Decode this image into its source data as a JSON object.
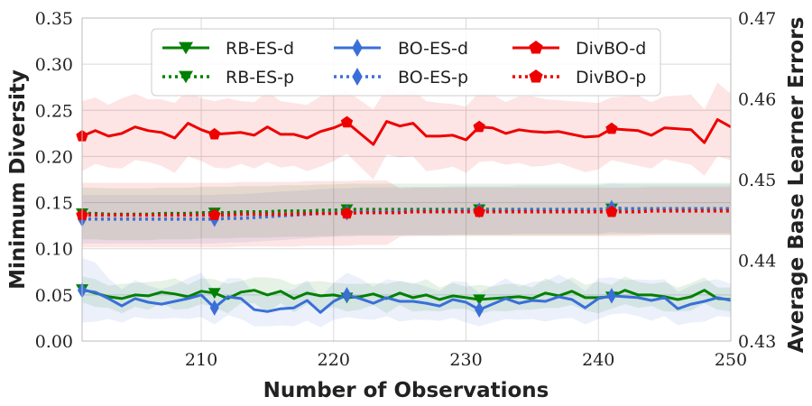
{
  "chart_data": {
    "type": "line",
    "title": "",
    "xlabel": "Number of Observations",
    "ylabel_left": "Minimum Diversity",
    "ylabel_right": "Average Base Learner Errors",
    "xlim": [
      201,
      250
    ],
    "ylim_left": [
      0.0,
      0.35
    ],
    "ylim_right": [
      0.43,
      0.47
    ],
    "x_ticks": [
      210,
      220,
      230,
      240,
      250
    ],
    "y_ticks_left": [
      "0.00",
      "0.05",
      "0.10",
      "0.15",
      "0.20",
      "0.25",
      "0.30",
      "0.35"
    ],
    "y_ticks_right": [
      "0.43",
      "0.44",
      "0.45",
      "0.46",
      "0.47"
    ],
    "grid": true,
    "legend_position": "top-center",
    "x": [
      201,
      202,
      203,
      204,
      205,
      206,
      207,
      208,
      209,
      210,
      211,
      212,
      213,
      214,
      215,
      216,
      217,
      218,
      219,
      220,
      221,
      222,
      223,
      224,
      225,
      226,
      227,
      228,
      229,
      230,
      231,
      232,
      233,
      234,
      235,
      236,
      237,
      238,
      239,
      240,
      241,
      242,
      243,
      244,
      245,
      246,
      247,
      248,
      249,
      250
    ],
    "marker_x": [
      201,
      211,
      221,
      231,
      241
    ],
    "series": [
      {
        "name": "RB-ES-d",
        "color": "#008000",
        "style": "solid",
        "marker": "triangle-down",
        "axis": "left",
        "values": [
          0.056,
          0.052,
          0.048,
          0.046,
          0.05,
          0.049,
          0.053,
          0.051,
          0.048,
          0.054,
          0.052,
          0.046,
          0.053,
          0.055,
          0.05,
          0.054,
          0.046,
          0.052,
          0.049,
          0.05,
          0.047,
          0.048,
          0.051,
          0.046,
          0.052,
          0.047,
          0.05,
          0.045,
          0.049,
          0.047,
          0.045,
          0.046,
          0.047,
          0.048,
          0.046,
          0.052,
          0.049,
          0.054,
          0.047,
          0.047,
          0.048,
          0.055,
          0.05,
          0.05,
          0.048,
          0.045,
          0.048,
          0.055,
          0.046,
          0.045
        ],
        "band": [
          0.014,
          0.015,
          0.012,
          0.016,
          0.013,
          0.015,
          0.012,
          0.017,
          0.013,
          0.014,
          0.015,
          0.016,
          0.012,
          0.014,
          0.019,
          0.013,
          0.015,
          0.012,
          0.016,
          0.013,
          0.015,
          0.014,
          0.012,
          0.016,
          0.013,
          0.015,
          0.017,
          0.013,
          0.014,
          0.012,
          0.016,
          0.013,
          0.015,
          0.014,
          0.012,
          0.016,
          0.013,
          0.015,
          0.014,
          0.017,
          0.013,
          0.015,
          0.014,
          0.012,
          0.016,
          0.013,
          0.015,
          0.014,
          0.012,
          0.013
        ]
      },
      {
        "name": "BO-ES-d",
        "color": "#3a6fd8",
        "style": "solid",
        "marker": "diamond",
        "axis": "left",
        "values": [
          0.055,
          0.053,
          0.046,
          0.038,
          0.046,
          0.042,
          0.04,
          0.043,
          0.046,
          0.05,
          0.036,
          0.048,
          0.046,
          0.034,
          0.032,
          0.035,
          0.036,
          0.044,
          0.031,
          0.043,
          0.05,
          0.046,
          0.041,
          0.047,
          0.043,
          0.043,
          0.041,
          0.038,
          0.045,
          0.042,
          0.034,
          0.04,
          0.046,
          0.041,
          0.044,
          0.043,
          0.048,
          0.045,
          0.036,
          0.046,
          0.049,
          0.048,
          0.047,
          0.044,
          0.047,
          0.035,
          0.04,
          0.043,
          0.047,
          0.044
        ],
        "band": [
          0.035,
          0.032,
          0.022,
          0.018,
          0.02,
          0.018,
          0.016,
          0.018,
          0.022,
          0.024,
          0.018,
          0.02,
          0.022,
          0.018,
          0.016,
          0.018,
          0.02,
          0.022,
          0.016,
          0.02,
          0.024,
          0.022,
          0.018,
          0.02,
          0.022,
          0.02,
          0.018,
          0.016,
          0.02,
          0.022,
          0.018,
          0.02,
          0.022,
          0.018,
          0.02,
          0.022,
          0.024,
          0.02,
          0.018,
          0.022,
          0.02,
          0.018,
          0.02,
          0.022,
          0.02,
          0.018,
          0.02,
          0.022,
          0.02,
          0.018
        ]
      },
      {
        "name": "DivBO-d",
        "color": "#ee0000",
        "style": "solid",
        "marker": "pentagon",
        "axis": "left",
        "values": [
          0.222,
          0.228,
          0.222,
          0.225,
          0.232,
          0.228,
          0.226,
          0.22,
          0.236,
          0.229,
          0.224,
          0.225,
          0.226,
          0.223,
          0.232,
          0.224,
          0.224,
          0.22,
          0.227,
          0.231,
          0.237,
          0.225,
          0.213,
          0.238,
          0.233,
          0.236,
          0.222,
          0.222,
          0.223,
          0.218,
          0.232,
          0.231,
          0.225,
          0.229,
          0.227,
          0.226,
          0.227,
          0.224,
          0.221,
          0.222,
          0.23,
          0.229,
          0.228,
          0.223,
          0.231,
          0.23,
          0.229,
          0.215,
          0.24,
          0.232
        ],
        "band": [
          0.038,
          0.036,
          0.034,
          0.038,
          0.036,
          0.034,
          0.036,
          0.038,
          0.036,
          0.034,
          0.036,
          0.038,
          0.034,
          0.036,
          0.038,
          0.036,
          0.034,
          0.036,
          0.038,
          0.036,
          0.034,
          0.036,
          0.038,
          0.036,
          0.034,
          0.036,
          0.038,
          0.036,
          0.034,
          0.036,
          0.038,
          0.036,
          0.034,
          0.036,
          0.038,
          0.036,
          0.034,
          0.036,
          0.038,
          0.036,
          0.034,
          0.036,
          0.038,
          0.036,
          0.034,
          0.036,
          0.038,
          0.036,
          0.04,
          0.036
        ]
      },
      {
        "name": "RB-ES-p",
        "color": "#008000",
        "style": "dotted",
        "marker": "triangle-down",
        "axis": "right",
        "values": [
          0.4458,
          0.4458,
          0.4457,
          0.4457,
          0.4457,
          0.4457,
          0.4458,
          0.4458,
          0.4458,
          0.4459,
          0.4459,
          0.4459,
          0.446,
          0.446,
          0.446,
          0.4461,
          0.4461,
          0.4461,
          0.4462,
          0.4462,
          0.4463,
          0.4463,
          0.4463,
          0.4463,
          0.4463,
          0.4463,
          0.4463,
          0.4463,
          0.4463,
          0.4463,
          0.4463,
          0.4463,
          0.4463,
          0.4463,
          0.4463,
          0.4463,
          0.4463,
          0.4463,
          0.4463,
          0.4463,
          0.4464,
          0.4464,
          0.4464,
          0.4464,
          0.4464,
          0.4464,
          0.4464,
          0.4464,
          0.4464,
          0.4464
        ],
        "band": [
          0.0032,
          0.0032,
          0.0032,
          0.0032,
          0.0032,
          0.0032,
          0.0032,
          0.0032,
          0.0032,
          0.0032,
          0.0032,
          0.0032,
          0.0032,
          0.0032,
          0.0032,
          0.0032,
          0.0032,
          0.0032,
          0.0032,
          0.0032,
          0.0032,
          0.0032,
          0.0032,
          0.0032,
          0.0032,
          0.0032,
          0.0032,
          0.0032,
          0.0032,
          0.0032,
          0.0032,
          0.0032,
          0.0032,
          0.0032,
          0.0032,
          0.0032,
          0.0032,
          0.0032,
          0.0032,
          0.0032,
          0.0032,
          0.0032,
          0.0032,
          0.0032,
          0.0032,
          0.0032,
          0.0032,
          0.0032,
          0.0032,
          0.0032
        ]
      },
      {
        "name": "BO-ES-p",
        "color": "#3a6fd8",
        "style": "dotted",
        "marker": "diamond",
        "axis": "right",
        "values": [
          0.4451,
          0.4451,
          0.4451,
          0.4451,
          0.4451,
          0.4451,
          0.4451,
          0.4451,
          0.4451,
          0.4451,
          0.4451,
          0.4452,
          0.4452,
          0.4453,
          0.4454,
          0.4455,
          0.4456,
          0.4457,
          0.4458,
          0.4459,
          0.4459,
          0.446,
          0.446,
          0.446,
          0.4461,
          0.4461,
          0.4461,
          0.4461,
          0.4462,
          0.4462,
          0.4462,
          0.4462,
          0.4462,
          0.4463,
          0.4463,
          0.4463,
          0.4463,
          0.4463,
          0.4463,
          0.4463,
          0.4465,
          0.4464,
          0.4464,
          0.4464,
          0.4464,
          0.4464,
          0.4464,
          0.4464,
          0.4464,
          0.4464
        ],
        "band": [
          0.003,
          0.003,
          0.003,
          0.003,
          0.003,
          0.003,
          0.003,
          0.003,
          0.003,
          0.003,
          0.003,
          0.003,
          0.003,
          0.003,
          0.003,
          0.003,
          0.003,
          0.003,
          0.003,
          0.003,
          0.003,
          0.003,
          0.003,
          0.003,
          0.003,
          0.003,
          0.003,
          0.003,
          0.003,
          0.003,
          0.003,
          0.003,
          0.003,
          0.003,
          0.003,
          0.003,
          0.003,
          0.003,
          0.003,
          0.003,
          0.003,
          0.003,
          0.003,
          0.003,
          0.003,
          0.003,
          0.003,
          0.003,
          0.003,
          0.003
        ]
      },
      {
        "name": "DivBO-p",
        "color": "#ee0000",
        "style": "dotted",
        "marker": "pentagon",
        "axis": "right",
        "values": [
          0.4456,
          0.4456,
          0.4456,
          0.4456,
          0.4456,
          0.4456,
          0.4456,
          0.4456,
          0.4456,
          0.4456,
          0.4456,
          0.4456,
          0.4457,
          0.4457,
          0.4457,
          0.4457,
          0.4457,
          0.4458,
          0.4458,
          0.4458,
          0.4458,
          0.4459,
          0.4459,
          0.4459,
          0.4459,
          0.446,
          0.446,
          0.446,
          0.446,
          0.446,
          0.446,
          0.446,
          0.446,
          0.446,
          0.446,
          0.446,
          0.446,
          0.446,
          0.446,
          0.446,
          0.446,
          0.446,
          0.446,
          0.4461,
          0.4461,
          0.4461,
          0.4461,
          0.4461,
          0.4461,
          0.4461
        ],
        "band": [
          0.004,
          0.004,
          0.004,
          0.004,
          0.004,
          0.004,
          0.004,
          0.004,
          0.004,
          0.004,
          0.004,
          0.004,
          0.004,
          0.004,
          0.004,
          0.004,
          0.004,
          0.004,
          0.004,
          0.004,
          0.004,
          0.004,
          0.004,
          0.004,
          0.003,
          0.003,
          0.003,
          0.003,
          0.003,
          0.003,
          0.003,
          0.003,
          0.003,
          0.003,
          0.003,
          0.003,
          0.003,
          0.003,
          0.003,
          0.003,
          0.003,
          0.003,
          0.003,
          0.003,
          0.003,
          0.003,
          0.003,
          0.003,
          0.003,
          0.003
        ]
      }
    ],
    "legend": [
      {
        "label": "RB-ES-d"
      },
      {
        "label": "BO-ES-d"
      },
      {
        "label": "DivBO-d"
      },
      {
        "label": "RB-ES-p"
      },
      {
        "label": "BO-ES-p"
      },
      {
        "label": "DivBO-p"
      }
    ]
  }
}
